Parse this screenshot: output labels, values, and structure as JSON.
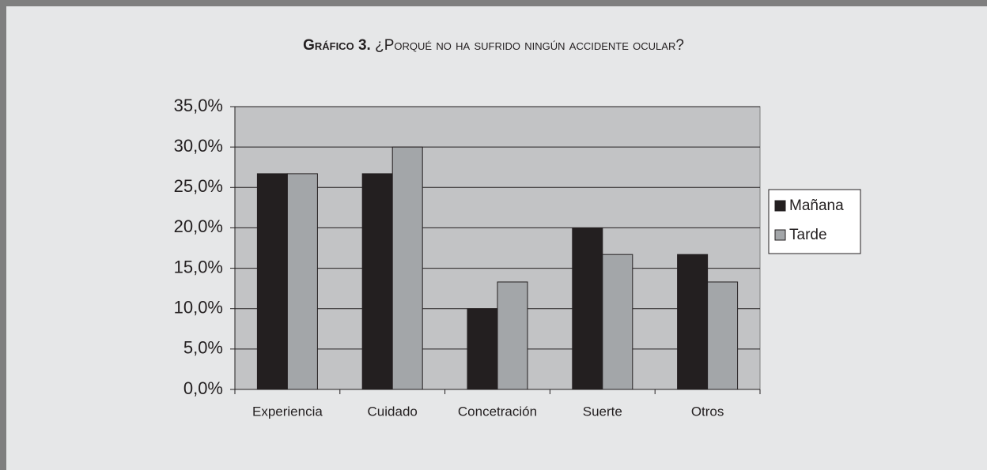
{
  "chart_data": {
    "type": "bar",
    "title_prefix": "Gráfico 3.",
    "title": "¿Porqué no ha sufrido ningún accidente ocular?",
    "categories": [
      "Experiencia",
      "Cuidado",
      "Concetración",
      "Suerte",
      "Otros"
    ],
    "series": [
      {
        "name": "Mañana",
        "color": "#231f20",
        "values": [
          26.7,
          26.7,
          10.0,
          20.0,
          16.7
        ]
      },
      {
        "name": "Tarde",
        "color": "#a3a6a9",
        "values": [
          26.7,
          30.0,
          13.3,
          16.7,
          13.3
        ]
      }
    ],
    "ylim": [
      0,
      35
    ],
    "yticks": [
      {
        "value": 0,
        "label": "0,0%"
      },
      {
        "value": 5,
        "label": "5,0%"
      },
      {
        "value": 10,
        "label": "10,0%"
      },
      {
        "value": 15,
        "label": "15,0%"
      },
      {
        "value": 20,
        "label": "20,0%"
      },
      {
        "value": 25,
        "label": "25,0%"
      },
      {
        "value": 30,
        "label": "30,0%"
      },
      {
        "value": 35,
        "label": "35,0%"
      }
    ],
    "grid": true,
    "legend": "right"
  }
}
